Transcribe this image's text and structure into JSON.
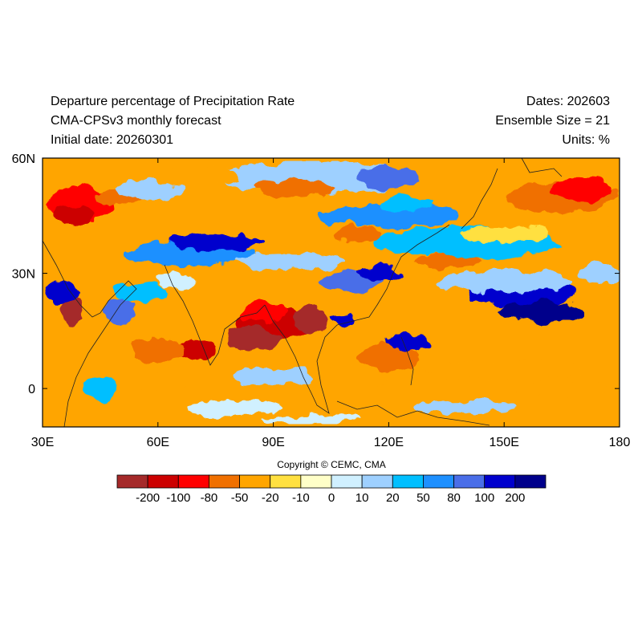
{
  "header": {
    "title": "Departure percentage of Precipitation Rate",
    "model": "CMA-CPSv3 monthly forecast",
    "initial_date": "Initial date: 20260301",
    "dates": "Dates: 202603",
    "ensemble": "Ensemble Size = 21",
    "units": "Units: %"
  },
  "map": {
    "lat_labels": [
      "60N",
      "30N",
      "0"
    ],
    "lon_labels": [
      "30E",
      "60E",
      "90E",
      "120E",
      "150E",
      "180"
    ],
    "lat_range": [
      -10,
      60
    ],
    "lon_range": [
      30,
      180
    ]
  },
  "copyright": "Copyright © CEMC, CMA",
  "colorbar": {
    "labels": [
      "-200",
      "-100",
      "-80",
      "-50",
      "-20",
      "-10",
      "0",
      "10",
      "20",
      "50",
      "80",
      "100",
      "200"
    ],
    "colors": [
      "#a52a2a",
      "#cc0000",
      "#ff0000",
      "#f07000",
      "#ffa500",
      "#ffe040",
      "#ffffc8",
      "#d0f0ff",
      "#9ed0ff",
      "#00bfff",
      "#1e90ff",
      "#4a6ee8",
      "#0000cd",
      "#00008b"
    ]
  }
}
